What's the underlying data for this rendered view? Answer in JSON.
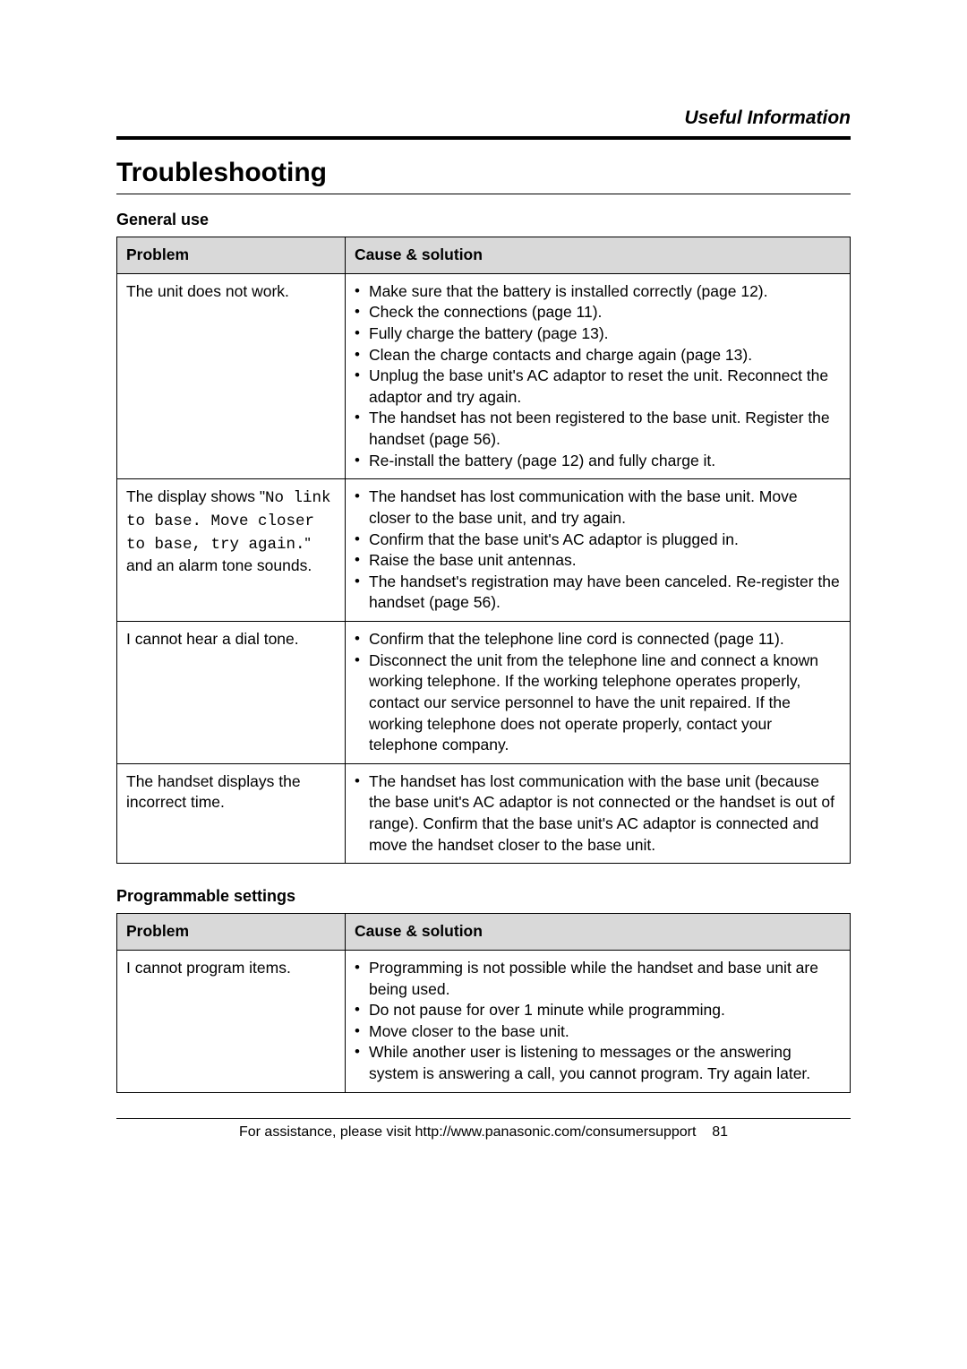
{
  "section_header": "Useful Information",
  "main_heading": "Troubleshooting",
  "general_use": {
    "title": "General use",
    "headers": {
      "problem": "Problem",
      "solution": "Cause & solution"
    },
    "rows": [
      {
        "problem_text": "The unit does not work.",
        "solutions": [
          "Make sure that the battery is installed correctly (page 12).",
          "Check the connections (page 11).",
          "Fully charge the battery (page 13).",
          "Clean the charge contacts and charge again (page 13).",
          "Unplug the base unit's AC adaptor to reset the unit. Reconnect the adaptor and try again.",
          "The handset has not been registered to the base unit. Register the handset (page 56).",
          "Re-install the battery (page 12) and fully charge it."
        ]
      },
      {
        "problem_prefix": "The display shows \"",
        "problem_mono": "No link to base. Move closer to base, try again.",
        "problem_suffix": "\" and an alarm tone sounds.",
        "solutions": [
          "The handset has lost communication with the base unit. Move closer to the base unit, and try again.",
          "Confirm that the base unit's AC adaptor is plugged in.",
          "Raise the base unit antennas.",
          "The handset's registration may have been canceled. Re-register the handset (page 56)."
        ]
      },
      {
        "problem_text": "I cannot hear a dial tone.",
        "solutions": [
          "Confirm that the telephone line cord is connected (page 11).",
          "Disconnect the unit from the telephone line and connect a known working telephone. If the working telephone operates properly, contact our service personnel to have the unit repaired. If the working telephone does not operate properly, contact your telephone company."
        ]
      },
      {
        "problem_text": "The handset displays the incorrect time.",
        "solutions": [
          "The handset has lost communication with the base unit (because the base unit's AC adaptor is not connected or the handset is out of range). Confirm that the base unit's AC adaptor is connected and move the handset closer to the base unit."
        ]
      }
    ]
  },
  "programmable": {
    "title": "Programmable settings",
    "headers": {
      "problem": "Problem",
      "solution": "Cause & solution"
    },
    "rows": [
      {
        "problem_text": "I cannot program items.",
        "solutions": [
          "Programming is not possible while the handset and base unit are being used.",
          "Do not pause for over 1 minute while programming.",
          "Move closer to the base unit.",
          "While another user is listening to messages or the answering system is answering a call, you cannot program. Try again later."
        ]
      }
    ]
  },
  "footer_text": "For assistance, please visit http://www.panasonic.com/consumersupport",
  "page_number": "81"
}
